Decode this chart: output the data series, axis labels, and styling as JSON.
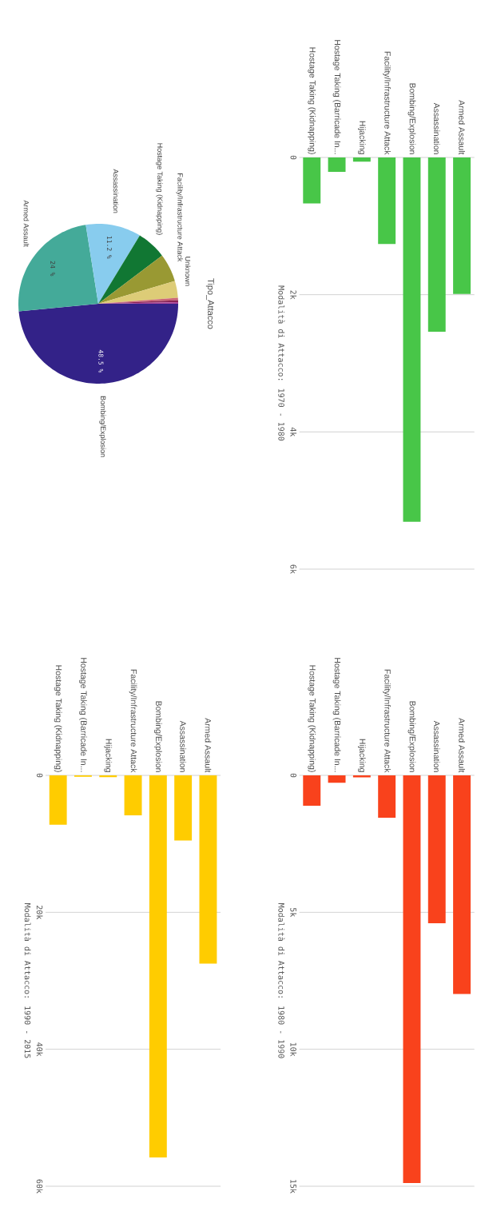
{
  "chart_data": [
    {
      "type": "bar",
      "ylabel": "Modalità di Attacco: 1970 - 1980",
      "categories": [
        "Hostage Taking (Kidnapping)",
        "Hostage Taking (Barricade In...",
        "Hijacking",
        "Facility/Infrastructure Attack",
        "Bombing/Explosion",
        "Assassination",
        "Armed Assault"
      ],
      "values": [
        670,
        210,
        60,
        1260,
        5310,
        2540,
        1990
      ],
      "color": "#48c648",
      "ylim": [
        6000,
        0
      ],
      "yticks": [
        0,
        {
          "value": 2000,
          "label": "2k"
        },
        {
          "value": 4000,
          "label": "4k"
        },
        {
          "value": 6000,
          "label": "6k"
        }
      ],
      "grid": "y"
    },
    {
      "type": "bar",
      "ylabel": "Modalità di Attacco: 1980 - 1990",
      "categories": [
        "Hostage Taking (Kidnapping)",
        "Hostage Taking (Barricade In...",
        "Hijacking",
        "Facility/Infrastructure Attack",
        "Bombing/Explosion",
        "Assassination",
        "Armed Assault"
      ],
      "values": [
        1110,
        270,
        70,
        1550,
        14880,
        5400,
        7980
      ],
      "color": "#f9421c",
      "ylim": [
        15000,
        0
      ],
      "yticks": [
        0,
        {
          "value": 5000,
          "label": "5k"
        },
        {
          "value": 10000,
          "label": "10k"
        },
        {
          "value": 15000,
          "label": "15k"
        }
      ],
      "grid": "y"
    },
    {
      "type": "bar",
      "ylabel": "Modalità di Attacco: 1990 - 2015",
      "categories": [
        "Hostage Taking (Kidnapping)",
        "Hostage Taking (Barricade In...",
        "Hijacking",
        "Facility/Infrastructure Attack",
        "Bombing/Explosion",
        "Assassination",
        "Armed Assault"
      ],
      "values": [
        7200,
        200,
        270,
        5850,
        55800,
        9500,
        27500
      ],
      "color": "#ffcc00",
      "ylim": [
        60000,
        0
      ],
      "yticks": [
        0,
        {
          "value": 20000,
          "label": "20k"
        },
        {
          "value": 40000,
          "label": "40k"
        },
        {
          "value": 60000,
          "label": "60k"
        }
      ],
      "grid": "y"
    },
    {
      "type": "pie",
      "title": "Tipo_Attacco",
      "categories": [
        "Bombing/Explosion",
        "Armed Assault",
        "Assassination",
        "Hostage Taking (Kidnapping)",
        "Facility/Infrastructure Attack",
        "Unknown",
        null,
        null,
        null
      ],
      "values": [
        48.5,
        24,
        11.2,
        6,
        5.7,
        3.4,
        0.5,
        0.4,
        0.3
      ],
      "colors": [
        "#332288",
        "#44aa99",
        "#88ccee",
        "#117733",
        "#999933",
        "#ddcc77",
        "#cc6677",
        "#882255",
        "#aa4499"
      ],
      "value_labels": [
        "48.5 %",
        "24 %",
        "11.2 %",
        null,
        null,
        null,
        null,
        null,
        null
      ]
    }
  ]
}
